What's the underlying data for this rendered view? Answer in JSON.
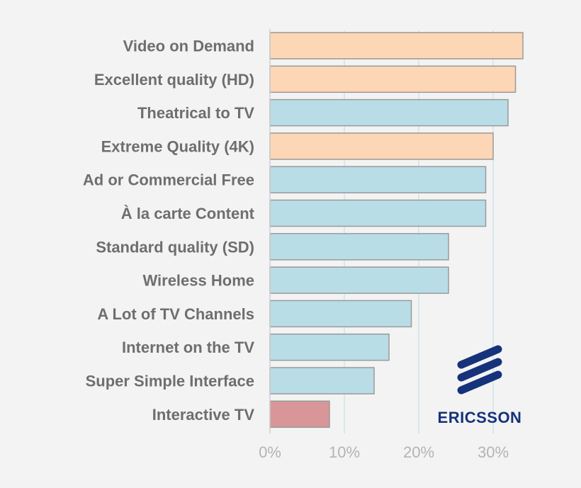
{
  "chart_data": {
    "type": "bar",
    "orientation": "horizontal",
    "title": "",
    "xlabel": "",
    "ylabel": "",
    "categories": [
      "Video on Demand",
      "Excellent quality (HD)",
      "Theatrical to TV",
      "Extreme Quality (4K)",
      "Ad or Commercial Free",
      "À la carte Content",
      "Standard quality (SD)",
      "Wireless Home",
      "A Lot of TV Channels",
      "Internet on the TV",
      "Super Simple Interface",
      "Interactive TV"
    ],
    "values": [
      34,
      33,
      32,
      30,
      29,
      29,
      24,
      24,
      19,
      16,
      14,
      8
    ],
    "bar_colors": [
      "#fdd6b5",
      "#fdd6b5",
      "#b9dde7",
      "#fdd6b5",
      "#b9dde7",
      "#b9dde7",
      "#b9dde7",
      "#b9dde7",
      "#b9dde7",
      "#b9dde7",
      "#b9dde7",
      "#d99699"
    ],
    "xlim": [
      0,
      35
    ],
    "xticks": [
      0,
      10,
      20,
      30
    ],
    "xtick_labels": [
      "0%",
      "10%",
      "20%",
      "30%"
    ],
    "grid": true,
    "legend": "none"
  },
  "logo": {
    "text": "ERICSSON",
    "color": "#15327a"
  }
}
